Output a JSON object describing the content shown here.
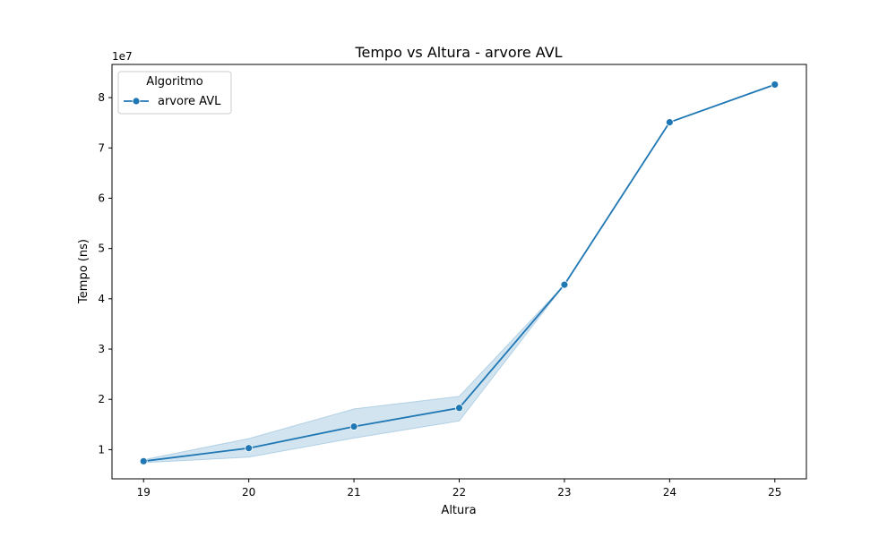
{
  "chart_data": {
    "type": "line",
    "title": "Tempo vs Altura - arvore AVL",
    "xlabel": "Altura",
    "ylabel": "Tempo (ns)",
    "y_offset_label": "1e7",
    "x_ticks": [
      19,
      20,
      21,
      22,
      23,
      24,
      25
    ],
    "y_ticks": [
      1,
      2,
      3,
      4,
      5,
      6,
      7,
      8
    ],
    "xlim": [
      18.7,
      25.3
    ],
    "ylim": [
      0.42,
      8.66
    ],
    "grid": false,
    "legend": {
      "title": "Algoritmo",
      "placement": "top-left"
    },
    "series": [
      {
        "name": "arvore AVL",
        "color": "#1f77b4",
        "x": [
          19,
          20,
          21,
          22,
          23,
          24,
          25
        ],
        "y": [
          0.77,
          1.03,
          1.46,
          1.83,
          4.28,
          7.51,
          8.26
        ],
        "ci_lower": [
          0.74,
          0.85,
          1.23,
          1.57,
          4.28,
          7.51,
          8.26
        ],
        "ci_upper": [
          0.8,
          1.22,
          1.81,
          2.06,
          4.28,
          7.51,
          8.26
        ]
      }
    ]
  }
}
